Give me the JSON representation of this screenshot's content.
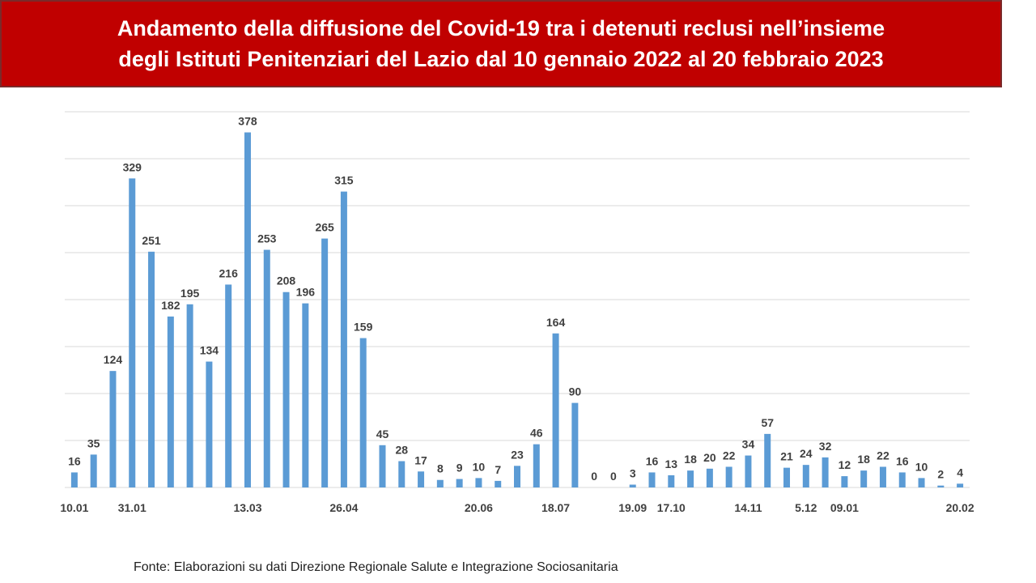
{
  "header": {
    "title_line1": "Andamento della diffusione del Covid-19 tra i detenuti reclusi nell’insieme",
    "title_line2": "degli Istituti Penitenziari del Lazio dal 10 gennaio 2022 al 20 febbraio 2023"
  },
  "footer": {
    "source": "Fonte: Elaborazioni su dati Direzione Regionale Salute e Integrazione Sociosanitaria"
  },
  "colors": {
    "banner": "#c00000",
    "bar": "#5b9bd5",
    "grid": "#d9d9d9",
    "text": "#404040"
  },
  "chart_data": {
    "type": "bar",
    "title": "Andamento della diffusione del Covid-19 tra i detenuti reclusi nell’insieme degli Istituti Penitenziari del Lazio dal 10 gennaio 2022 al 20 febbraio 2023",
    "xlabel": "",
    "ylabel": "",
    "ylim": [
      0,
      400
    ],
    "grid": true,
    "legend": "none",
    "values": [
      16,
      35,
      124,
      329,
      251,
      182,
      195,
      134,
      216,
      378,
      253,
      208,
      196,
      265,
      315,
      159,
      45,
      28,
      17,
      8,
      9,
      10,
      7,
      23,
      46,
      164,
      90,
      0,
      0,
      3,
      16,
      13,
      18,
      20,
      22,
      34,
      57,
      21,
      24,
      32,
      12,
      18,
      22,
      16,
      10,
      2,
      4
    ],
    "tick_labels": [
      {
        "index": 0,
        "label": "10.01"
      },
      {
        "index": 3,
        "label": "31.01"
      },
      {
        "index": 9,
        "label": "13.03"
      },
      {
        "index": 14,
        "label": "26.04"
      },
      {
        "index": 21,
        "label": "20.06"
      },
      {
        "index": 25,
        "label": "18.07"
      },
      {
        "index": 29,
        "label": "19.09"
      },
      {
        "index": 31,
        "label": "17.10"
      },
      {
        "index": 35,
        "label": "14.11"
      },
      {
        "index": 38,
        "label": "5.12"
      },
      {
        "index": 40,
        "label": "09.01"
      },
      {
        "index": 46,
        "label": "20.02"
      }
    ]
  }
}
